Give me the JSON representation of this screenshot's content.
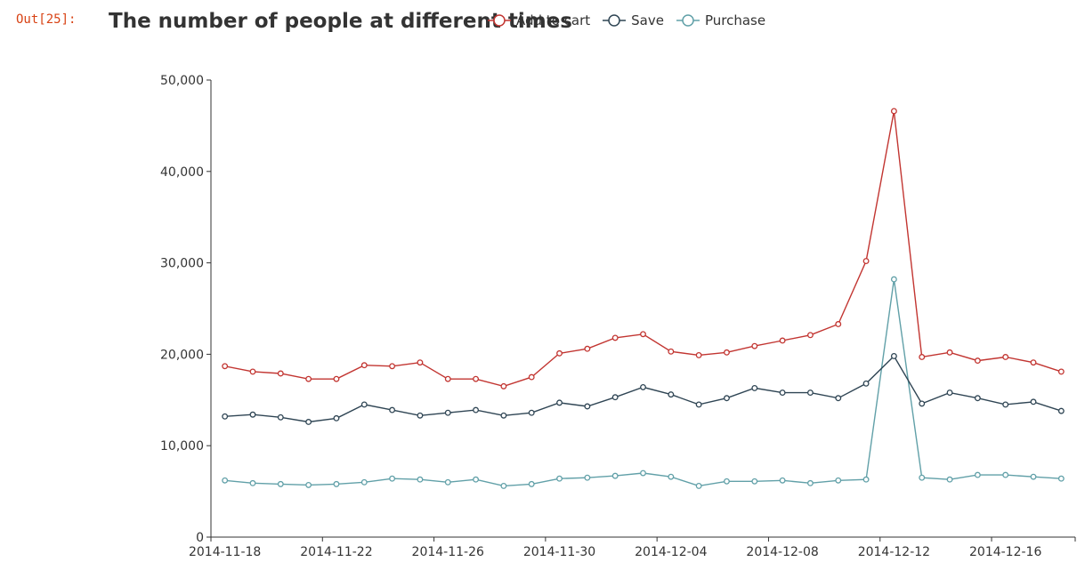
{
  "cell": {
    "prompt": "Out[25]:"
  },
  "chart_data": {
    "type": "line",
    "title": "The number of people at different times",
    "xlabel": "",
    "ylabel": "",
    "ylim": [
      0,
      50000
    ],
    "y_ticks": [
      0,
      10000,
      20000,
      30000,
      40000,
      50000
    ],
    "y_tick_labels": [
      "0",
      "10,000",
      "20,000",
      "30,000",
      "40,000",
      "50,000"
    ],
    "x": [
      "2014-11-18",
      "2014-11-19",
      "2014-11-20",
      "2014-11-21",
      "2014-11-22",
      "2014-11-23",
      "2014-11-24",
      "2014-11-25",
      "2014-11-26",
      "2014-11-27",
      "2014-11-28",
      "2014-11-29",
      "2014-11-30",
      "2014-12-01",
      "2014-12-02",
      "2014-12-03",
      "2014-12-04",
      "2014-12-05",
      "2014-12-06",
      "2014-12-07",
      "2014-12-08",
      "2014-12-09",
      "2014-12-10",
      "2014-12-11",
      "2014-12-12",
      "2014-12-13",
      "2014-12-14",
      "2014-12-15",
      "2014-12-16",
      "2014-12-17",
      "2014-12-18"
    ],
    "x_tick_labels": [
      "2014-11-18",
      "2014-11-22",
      "2014-11-26",
      "2014-11-30",
      "2014-12-04",
      "2014-12-08",
      "2014-12-12",
      "2014-12-16"
    ],
    "grid": false,
    "legend_position": "top",
    "series": [
      {
        "name": "Add to cart",
        "color": "#c23531",
        "values": [
          18700,
          18100,
          17900,
          17300,
          17300,
          18800,
          18700,
          19100,
          17300,
          17300,
          16500,
          17500,
          20100,
          20600,
          21800,
          22200,
          20300,
          19900,
          20200,
          20900,
          21500,
          22100,
          23300,
          30200,
          46600,
          19700,
          20200,
          19300,
          19700,
          19100,
          18100
        ]
      },
      {
        "name": "Save",
        "color": "#2f4554",
        "values": [
          13200,
          13400,
          13100,
          12600,
          13000,
          14500,
          13900,
          13300,
          13600,
          13900,
          13300,
          13600,
          14700,
          14300,
          15300,
          16400,
          15600,
          14500,
          15200,
          16300,
          15800,
          15800,
          15200,
          16800,
          19800,
          14600,
          15800,
          15200,
          14500,
          14800,
          13800
        ]
      },
      {
        "name": "Purchase",
        "color": "#61a0a8",
        "values": [
          6200,
          5900,
          5800,
          5700,
          5800,
          6000,
          6400,
          6300,
          6000,
          6300,
          5600,
          5800,
          6400,
          6500,
          6700,
          7000,
          6600,
          5600,
          6100,
          6100,
          6200,
          5900,
          6200,
          6300,
          28200,
          6500,
          6300,
          6800,
          6800,
          6600,
          6400
        ]
      }
    ]
  }
}
